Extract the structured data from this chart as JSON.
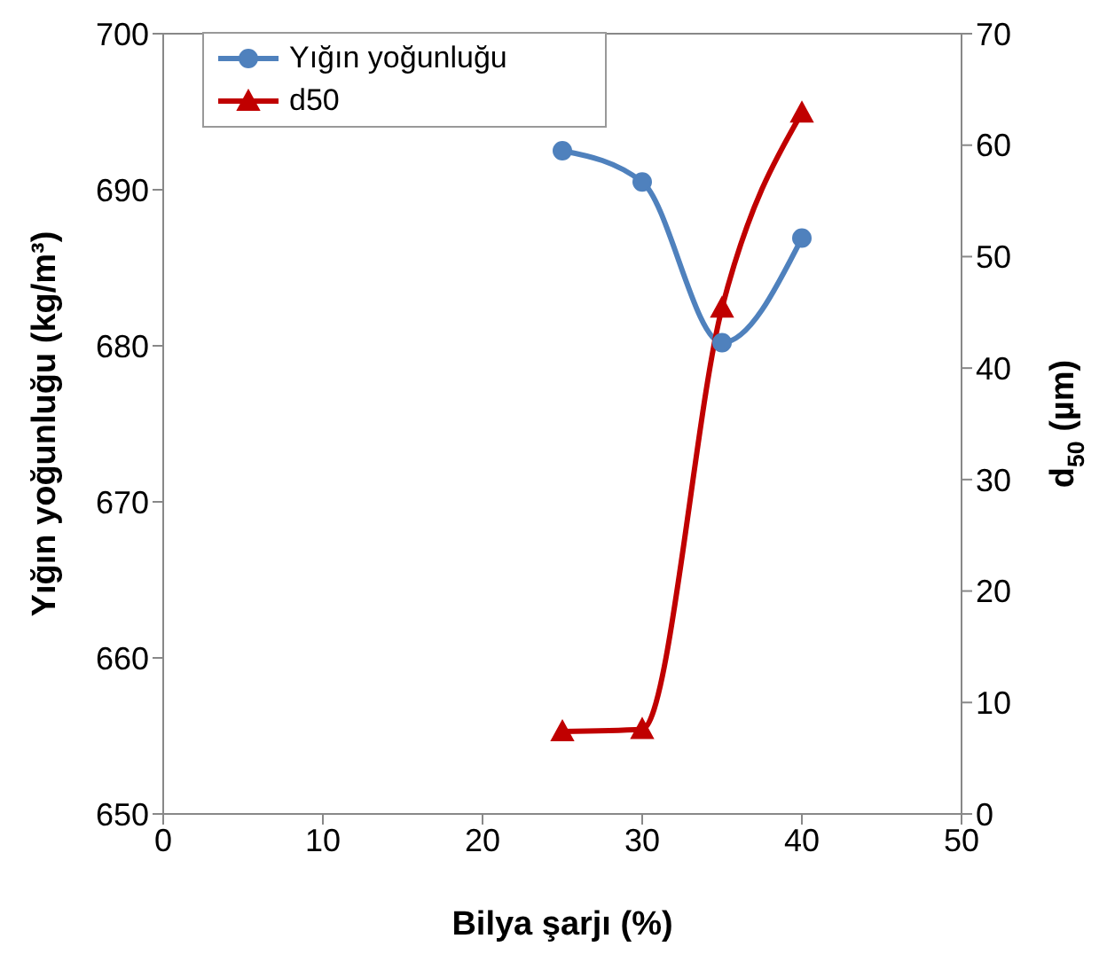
{
  "chart_data": {
    "type": "line",
    "xlabel": "Bilya şarjı (%)",
    "ylabel": "Yığın yoğunluğu (kg/m³)",
    "y2label": "d$_{50}$ (µm)",
    "x": [
      25,
      30,
      35,
      40
    ],
    "series": [
      {
        "name": "Yığın yoğunluğu",
        "color": "#4f81bd",
        "marker": "circle",
        "values": [
          692.5,
          690.5,
          680.2,
          686.9
        ]
      },
      {
        "name": "d50",
        "color": "#c00000",
        "marker": "triangle",
        "axis": "y2",
        "values": [
          7.4,
          7.6,
          45.4,
          62.9
        ]
      }
    ],
    "xlim": [
      0,
      50
    ],
    "xticks": [
      0,
      10,
      20,
      30,
      40,
      50
    ],
    "ylim": [
      650,
      700
    ],
    "yticks": [
      650,
      660,
      670,
      680,
      690,
      700
    ],
    "y2lim": [
      0,
      70
    ],
    "y2ticks": [
      0,
      10,
      20,
      30,
      40,
      50,
      60,
      70
    ],
    "grid": false,
    "legend": "top left",
    "line_style": "solid"
  }
}
